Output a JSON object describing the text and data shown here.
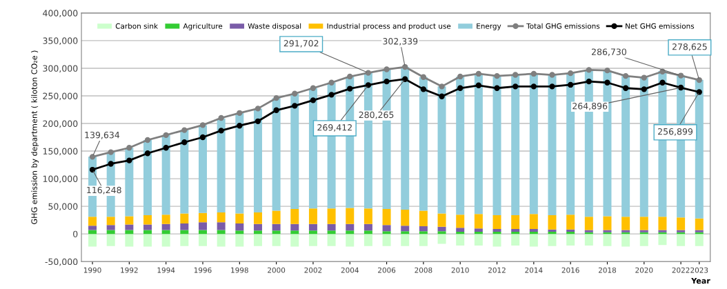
{
  "chart_data": {
    "type": "bar",
    "stacked": true,
    "x": [
      1990,
      1991,
      1992,
      1993,
      1994,
      1995,
      1996,
      1997,
      1998,
      1999,
      2000,
      2001,
      2002,
      2003,
      2004,
      2005,
      2006,
      2007,
      2008,
      2009,
      2010,
      2011,
      2012,
      2013,
      2014,
      2015,
      2016,
      2017,
      2018,
      2019,
      2020,
      2021,
      2022,
      2023
    ],
    "series": [
      {
        "name": "Carbon sink",
        "color": "#ccffcc",
        "values": [
          -23000,
          -22000,
          -23000,
          -23000,
          -23000,
          -22000,
          -22000,
          -23000,
          -23000,
          -22000,
          -22000,
          -23000,
          -22000,
          -22000,
          -23000,
          -22000,
          -22000,
          -22000,
          -22000,
          -18000,
          -21000,
          -21000,
          -23000,
          -21000,
          -23000,
          -22000,
          -21000,
          -21000,
          -22000,
          -23000,
          -22000,
          -20000,
          -22000,
          -22000
        ]
      },
      {
        "name": "Agriculture",
        "color": "#33cc33",
        "values": [
          7000,
          7000,
          7000,
          7000,
          7000,
          7000,
          7000,
          7000,
          6000,
          6000,
          6000,
          6000,
          6000,
          6000,
          6000,
          6000,
          5000,
          5000,
          5000,
          5000,
          4000,
          4000,
          4000,
          4000,
          4000,
          4000,
          4000,
          3000,
          3000,
          3000,
          3000,
          3000,
          3000,
          3000
        ]
      },
      {
        "name": "Waste disposal",
        "color": "#7a5ca8",
        "values": [
          8000,
          9000,
          10000,
          10000,
          11000,
          12000,
          14000,
          14000,
          13000,
          12000,
          12000,
          12000,
          12000,
          12000,
          12000,
          12000,
          11000,
          10000,
          9000,
          8000,
          7000,
          6000,
          5000,
          5000,
          5000,
          4000,
          4000,
          4000,
          4000,
          4000,
          4000,
          4000,
          4000,
          4000
        ]
      },
      {
        "name": "Industrial process and product use",
        "color": "#ffc000",
        "values": [
          16000,
          15000,
          15000,
          17000,
          17000,
          18000,
          17000,
          18000,
          18000,
          21000,
          24000,
          27000,
          28000,
          28000,
          29000,
          28000,
          29000,
          29000,
          28000,
          24000,
          24000,
          26000,
          25000,
          25000,
          27000,
          26000,
          27000,
          24000,
          25000,
          24000,
          24000,
          24000,
          23000,
          21000
        ]
      },
      {
        "name": "Energy",
        "color": "#92cddc",
        "values": [
          109000,
          117000,
          124000,
          136000,
          144000,
          151000,
          159000,
          170000,
          182000,
          188000,
          204000,
          209000,
          218000,
          228000,
          238000,
          246000,
          253000,
          258000,
          242000,
          230000,
          250000,
          254000,
          252000,
          254000,
          254000,
          254000,
          256000,
          266000,
          264000,
          255000,
          252000,
          264000,
          257000,
          251000
        ]
      },
      {
        "name": "Total GHG emissions",
        "type": "line",
        "color": "#7f7f7f",
        "values": [
          139634,
          148000,
          156000,
          170000,
          179000,
          188000,
          197000,
          210000,
          219000,
          227000,
          246000,
          254000,
          264000,
          274000,
          285000,
          291702,
          298000,
          302339,
          284000,
          267000,
          285000,
          290000,
          286000,
          288000,
          290000,
          288000,
          291000,
          297000,
          296000,
          286000,
          283000,
          294000,
          286730,
          278625
        ]
      },
      {
        "name": "Net GHG emissions",
        "type": "line",
        "color": "#000000",
        "values": [
          116248,
          127000,
          133000,
          146000,
          156000,
          166000,
          175000,
          187000,
          196000,
          204000,
          224000,
          232000,
          242000,
          252000,
          263000,
          269412,
          276000,
          280265,
          262000,
          249000,
          264000,
          269000,
          264000,
          267000,
          267000,
          267000,
          270000,
          276000,
          274000,
          264000,
          262000,
          274000,
          264896,
          256899
        ]
      }
    ],
    "marker": "circle",
    "line_style": "solid",
    "xlabel": "Year",
    "ylabel": "GHG emission by department ( kiloton CO₂e )",
    "xlim": [
      1989.4,
      2023.6
    ],
    "xticks": [
      1990,
      1992,
      1994,
      1996,
      1998,
      2000,
      2002,
      2004,
      2006,
      2008,
      2010,
      2012,
      2014,
      2016,
      2018,
      2020,
      2022,
      2023
    ],
    "ylim": [
      -50000,
      400000
    ],
    "yticks": [
      {
        "value": -50000,
        "label": "-50,000"
      },
      0,
      {
        "value": 50000,
        "label": "50,000"
      },
      {
        "value": 100000,
        "label": "100,000"
      },
      {
        "value": 150000,
        "label": "150,000"
      },
      {
        "value": 200000,
        "label": "200,000"
      },
      {
        "value": 250000,
        "label": "250,000"
      },
      {
        "value": 300000,
        "label": "300,000"
      },
      {
        "value": 350000,
        "label": "350,000"
      },
      {
        "value": 400000,
        "label": "400,000"
      }
    ],
    "grid": "y",
    "legend": "top",
    "annotations": [
      {
        "text": "139,634",
        "x": 1990,
        "y": 139634
      },
      {
        "text": "116,248",
        "x": 1990,
        "y": 116248
      },
      {
        "text": "291,702",
        "x": 2005,
        "y": 291702
      },
      {
        "text": "269,412",
        "x": 2005,
        "y": 269412
      },
      {
        "text": "302,339",
        "x": 2007,
        "y": 302339
      },
      {
        "text": "280,265",
        "x": 2007,
        "y": 280265
      },
      {
        "text": "286,730",
        "x": 2022,
        "y": 286730
      },
      {
        "text": "264,896",
        "x": 2022,
        "y": 264896
      },
      {
        "text": "278,625",
        "x": 2023,
        "y": 278625
      },
      {
        "text": "256,899",
        "x": 2023,
        "y": 256899
      }
    ]
  }
}
